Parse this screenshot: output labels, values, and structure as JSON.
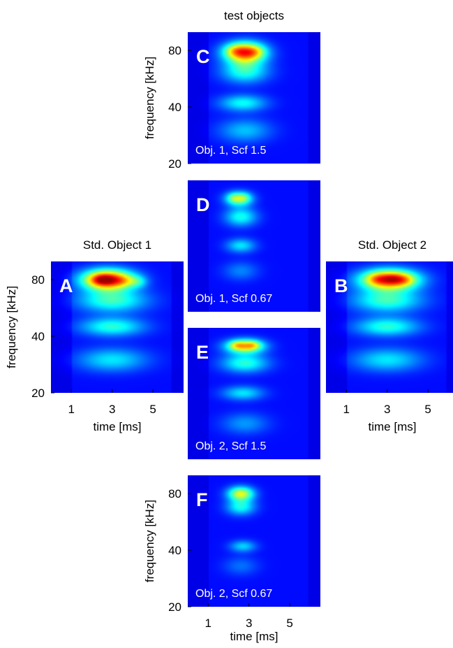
{
  "chart_data": [
    {
      "type": "heatmap",
      "panel": "C",
      "caption": "Obj. 1, Scf 1.5",
      "group_title": "test objects",
      "ylabel": "frequency [kHz]",
      "xlabel": "",
      "yticks": [
        20,
        40,
        80
      ],
      "xticks": [],
      "xlim": [
        0,
        6.5
      ],
      "ylim": [
        20,
        100
      ],
      "yscale": "log",
      "colormap": "jet",
      "grid": false,
      "blobs": [
        {
          "t": 2.8,
          "f": 78,
          "st": 0.7,
          "sf": 0.09,
          "a": 0.66
        },
        {
          "t": 2.3,
          "f": 80,
          "st": 0.35,
          "sf": 0.05,
          "a": 0.12
        },
        {
          "t": 3.3,
          "f": 79,
          "st": 0.35,
          "sf": 0.05,
          "a": 0.1
        },
        {
          "t": 2.8,
          "f": 62,
          "st": 0.8,
          "sf": 0.1,
          "a": 0.28
        },
        {
          "t": 2.7,
          "f": 42,
          "st": 0.8,
          "sf": 0.07,
          "a": 0.25
        },
        {
          "t": 2.8,
          "f": 30,
          "st": 0.9,
          "sf": 0.1,
          "a": 0.18
        }
      ]
    },
    {
      "type": "heatmap",
      "panel": "D",
      "caption": "Obj. 1, Scf 0.67",
      "ylabel": "",
      "xlabel": "",
      "yticks": [],
      "xticks": [],
      "xlim": [
        0,
        6.5
      ],
      "ylim": [
        20,
        100
      ],
      "yscale": "log",
      "colormap": "jet",
      "grid": false,
      "blobs": [
        {
          "t": 2.5,
          "f": 80,
          "st": 0.45,
          "sf": 0.06,
          "a": 0.42
        },
        {
          "t": 2.2,
          "f": 81,
          "st": 0.2,
          "sf": 0.04,
          "a": 0.06
        },
        {
          "t": 2.8,
          "f": 81,
          "st": 0.2,
          "sf": 0.04,
          "a": 0.06
        },
        {
          "t": 2.6,
          "f": 64,
          "st": 0.55,
          "sf": 0.08,
          "a": 0.26
        },
        {
          "t": 2.6,
          "f": 45,
          "st": 0.5,
          "sf": 0.06,
          "a": 0.22
        },
        {
          "t": 2.6,
          "f": 33,
          "st": 0.6,
          "sf": 0.08,
          "a": 0.12
        }
      ]
    },
    {
      "type": "heatmap",
      "panel": "E",
      "caption": "Obj. 2, Scf 1.5",
      "ylabel": "",
      "xlabel": "",
      "yticks": [],
      "xticks": [],
      "xlim": [
        0,
        6.5
      ],
      "ylim": [
        20,
        100
      ],
      "yscale": "log",
      "colormap": "jet",
      "grid": false,
      "blobs": [
        {
          "t": 2.8,
          "f": 80,
          "st": 0.65,
          "sf": 0.06,
          "a": 0.52
        },
        {
          "t": 2.4,
          "f": 81,
          "st": 0.25,
          "sf": 0.035,
          "a": 0.14
        },
        {
          "t": 3.2,
          "f": 81,
          "st": 0.25,
          "sf": 0.035,
          "a": 0.14
        },
        {
          "t": 2.8,
          "f": 65,
          "st": 0.8,
          "sf": 0.08,
          "a": 0.28
        },
        {
          "t": 2.7,
          "f": 45,
          "st": 0.7,
          "sf": 0.06,
          "a": 0.22
        },
        {
          "t": 2.8,
          "f": 31,
          "st": 0.8,
          "sf": 0.09,
          "a": 0.14
        }
      ]
    },
    {
      "type": "heatmap",
      "panel": "F",
      "caption": "Obj. 2, Scf 0.67",
      "ylabel": "frequency [kHz]",
      "xlabel": "time [ms]",
      "yticks": [
        20,
        40,
        80
      ],
      "xticks": [
        1,
        3,
        5
      ],
      "xlim": [
        0,
        6.5
      ],
      "ylim": [
        20,
        100
      ],
      "yscale": "log",
      "colormap": "jet",
      "grid": false,
      "blobs": [
        {
          "t": 2.6,
          "f": 80,
          "st": 0.45,
          "sf": 0.06,
          "a": 0.46
        },
        {
          "t": 2.6,
          "f": 68,
          "st": 0.5,
          "sf": 0.07,
          "a": 0.26
        },
        {
          "t": 2.7,
          "f": 42,
          "st": 0.45,
          "sf": 0.05,
          "a": 0.2
        },
        {
          "t": 2.6,
          "f": 33,
          "st": 0.6,
          "sf": 0.08,
          "a": 0.1
        }
      ]
    },
    {
      "type": "heatmap",
      "panel": "A",
      "caption": "",
      "group_title": "Std. Object 1",
      "ylabel": "frequency [kHz]",
      "xlabel": "time [ms]",
      "yticks": [
        20,
        40,
        80
      ],
      "xticks": [
        1,
        3,
        5
      ],
      "xlim": [
        0,
        6.5
      ],
      "ylim": [
        20,
        100
      ],
      "yscale": "log",
      "colormap": "jet",
      "grid": false,
      "blobs": [
        {
          "t": 2.8,
          "f": 80,
          "st": 0.9,
          "sf": 0.09,
          "a": 0.72
        },
        {
          "t": 2.5,
          "f": 80,
          "st": 0.4,
          "sf": 0.05,
          "a": 0.2
        },
        {
          "t": 3.6,
          "f": 79,
          "st": 0.4,
          "sf": 0.05,
          "a": 0.1
        },
        {
          "t": 4.3,
          "f": 78,
          "st": 0.3,
          "sf": 0.05,
          "a": 0.12
        },
        {
          "t": 3.0,
          "f": 62,
          "st": 1.2,
          "sf": 0.1,
          "a": 0.3
        },
        {
          "t": 3.0,
          "f": 45,
          "st": 1.1,
          "sf": 0.08,
          "a": 0.28
        },
        {
          "t": 3.0,
          "f": 30,
          "st": 1.2,
          "sf": 0.1,
          "a": 0.22
        }
      ]
    },
    {
      "type": "heatmap",
      "panel": "B",
      "caption": "",
      "group_title": "Std. Object 2",
      "ylabel": "",
      "xlabel": "time [ms]",
      "yticks": [],
      "xticks": [
        1,
        3,
        5
      ],
      "xlim": [
        0,
        6.5
      ],
      "ylim": [
        20,
        100
      ],
      "yscale": "log",
      "colormap": "jet",
      "grid": false,
      "blobs": [
        {
          "t": 3.1,
          "f": 80,
          "st": 1.0,
          "sf": 0.09,
          "a": 0.68
        },
        {
          "t": 2.5,
          "f": 81,
          "st": 0.35,
          "sf": 0.05,
          "a": 0.12
        },
        {
          "t": 3.3,
          "f": 81,
          "st": 0.35,
          "sf": 0.05,
          "a": 0.12
        },
        {
          "t": 3.9,
          "f": 80,
          "st": 0.35,
          "sf": 0.05,
          "a": 0.12
        },
        {
          "t": 3.0,
          "f": 62,
          "st": 1.2,
          "sf": 0.1,
          "a": 0.3
        },
        {
          "t": 3.0,
          "f": 45,
          "st": 1.1,
          "sf": 0.08,
          "a": 0.28
        },
        {
          "t": 3.0,
          "f": 30,
          "st": 1.2,
          "sf": 0.1,
          "a": 0.22
        }
      ]
    }
  ]
}
